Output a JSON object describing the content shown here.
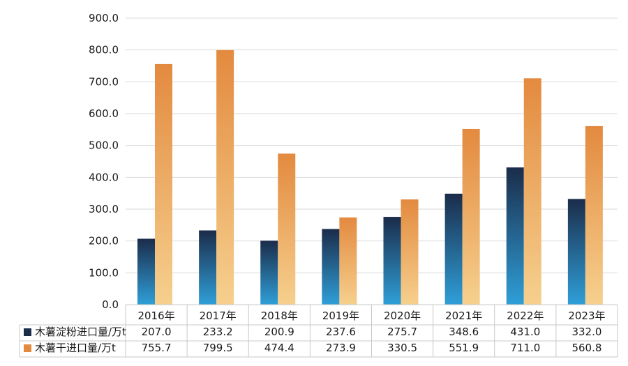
{
  "chart_data": {
    "type": "bar",
    "categories": [
      "2016年",
      "2017年",
      "2018年",
      "2019年",
      "2020年",
      "2021年",
      "2022年",
      "2023年"
    ],
    "series": [
      {
        "name": "木薯淀粉进口量/万t",
        "values": [
          207.0,
          233.2,
          200.9,
          237.6,
          275.7,
          348.6,
          431.0,
          332.0
        ],
        "labels": [
          "207.0",
          "233.2",
          "200.9",
          "237.6",
          "275.7",
          "348.6",
          "431.0",
          "332.0"
        ],
        "color_top": "#1b2c4a",
        "color_bottom": "#2f9fd8"
      },
      {
        "name": "木薯干进口量/万t",
        "values": [
          755.7,
          799.5,
          474.4,
          273.9,
          330.5,
          551.9,
          711.0,
          560.8
        ],
        "labels": [
          "755.7",
          "799.5",
          "474.4",
          "273.9",
          "330.5",
          "551.9",
          "711.0",
          "560.8"
        ],
        "color_top": "#e38a3f",
        "color_bottom": "#f6d08e"
      }
    ],
    "ylim": [
      0,
      900
    ],
    "yticks": [
      "0.0",
      "100.0",
      "200.0",
      "300.0",
      "400.0",
      "500.0",
      "600.0",
      "700.0",
      "800.0",
      "900.0"
    ],
    "grid": true,
    "data_table": true,
    "legend_placement": "data-table-rows"
  }
}
